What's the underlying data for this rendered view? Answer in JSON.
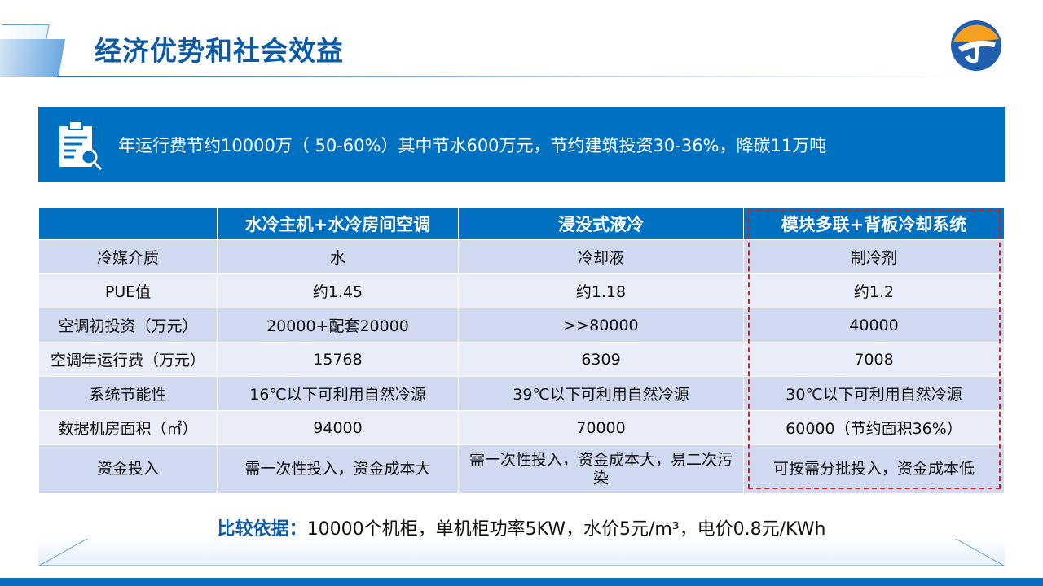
{
  "header": {
    "title": "经济优势和社会效益",
    "logo": "company-logo"
  },
  "banner": {
    "icon": "report-search-icon",
    "text": "年运行费节约10000万（ 50-60%）其中节水600万元，节约建筑投资30-36%，降碳11万吨"
  },
  "table": {
    "headers": [
      "",
      "水冷主机+水冷房间空调",
      "浸没式液冷",
      "模块多联+背板冷却系统"
    ],
    "rows": [
      [
        "冷媒介质",
        "水",
        "冷却液",
        "制冷剂"
      ],
      [
        "PUE值",
        "约1.45",
        "约1.18",
        "约1.2"
      ],
      [
        "空调初投资（万元）",
        "20000+配套20000",
        ">>80000",
        "40000"
      ],
      [
        "空调年运行费（万元）",
        "15768",
        "6309",
        "7008"
      ],
      [
        "系统节能性",
        "16℃以下可利用自然冷源",
        "39℃以下可利用自然冷源",
        "30℃以下可利用自然冷源"
      ],
      [
        "数据机房面积（㎡）",
        "94000",
        "70000",
        "60000（节约面积36%）"
      ],
      [
        "资金投入",
        "需一次性投入，资金成本大",
        "需一次性投入，资金成本大，易二次污染",
        "可按需分批投入，资金成本低"
      ]
    ],
    "highlight_color": "#c0272d"
  },
  "basis": {
    "label": "比较依据：",
    "text": "10000个机柜，单机柜功率5KW，水价5元/m³，电价0.8元/KWh"
  },
  "colors": {
    "primary": "#0070c0",
    "title": "#0a5aa8"
  }
}
